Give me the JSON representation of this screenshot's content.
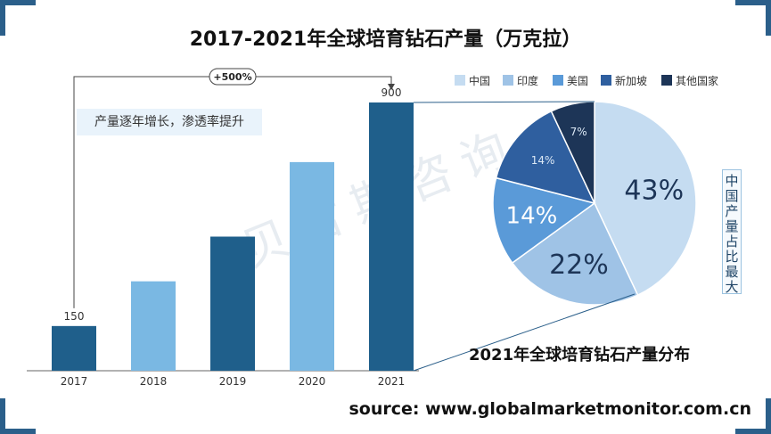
{
  "title": "2017-2021年全球培育钻石产量（万克拉）",
  "note": "产量逐年增长，渗透率提升",
  "growth_label": "+500%",
  "pie_title": "2021年全球培育钻石产量分布",
  "side_label": "中国产量占比最大",
  "watermark": "贝哲斯咨询",
  "source": "source: www.globalmarketmonitor.com.cn",
  "chart_data": [
    {
      "type": "bar",
      "categories": [
        "2017",
        "2018",
        "2019",
        "2020",
        "2021"
      ],
      "values": [
        150,
        300,
        450,
        700,
        900
      ],
      "data_labels": [
        "150",
        "",
        "",
        "",
        "900"
      ],
      "colors": [
        "#1f5f8b",
        "#7ab8e3",
        "#1f5f8b",
        "#7ab8e3",
        "#1f5f8b"
      ],
      "ylim": [
        0,
        900
      ]
    },
    {
      "type": "pie",
      "labels": [
        "中国",
        "印度",
        "美国",
        "新加坡",
        "其他国家"
      ],
      "values": [
        43,
        22,
        14,
        14,
        7
      ],
      "value_labels": [
        "43%",
        "22%",
        "14%",
        "14%",
        "7%"
      ],
      "colors": [
        "#c5dcf1",
        "#9fc3e6",
        "#5a9ad8",
        "#2f5f9f",
        "#1d3557"
      ],
      "legend_position": "top"
    }
  ]
}
